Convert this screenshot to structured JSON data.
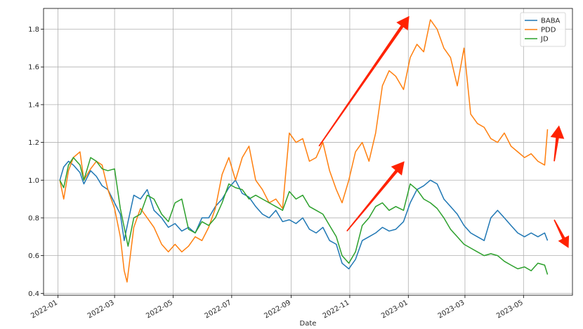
{
  "chart_data": {
    "type": "line",
    "title": "",
    "xlabel": "Date",
    "ylabel": "",
    "ylim": [
      0.39,
      1.91
    ],
    "xlim": [
      "2021-12-17",
      "2023-06-21"
    ],
    "grid": true,
    "legend_position": "top-right",
    "x_ticks": [
      "2022-01",
      "2022-03",
      "2022-05",
      "2022-07",
      "2022-09",
      "2022-11",
      "2023-01",
      "2023-03",
      "2023-05"
    ],
    "y_ticks": [
      0.4,
      0.6,
      0.8,
      1.0,
      1.2,
      1.4,
      1.6,
      1.8
    ],
    "series": [
      {
        "name": "BABA",
        "color": "#1f77b4",
        "points": [
          [
            "2022-01-03",
            1.0
          ],
          [
            "2022-01-07",
            1.07
          ],
          [
            "2022-01-12",
            1.1
          ],
          [
            "2022-01-17",
            1.08
          ],
          [
            "2022-01-24",
            1.04
          ],
          [
            "2022-01-28",
            0.98
          ],
          [
            "2022-02-04",
            1.05
          ],
          [
            "2022-02-10",
            1.02
          ],
          [
            "2022-02-16",
            0.97
          ],
          [
            "2022-02-22",
            0.95
          ],
          [
            "2022-03-01",
            0.88
          ],
          [
            "2022-03-07",
            0.82
          ],
          [
            "2022-03-11",
            0.68
          ],
          [
            "2022-03-15",
            0.78
          ],
          [
            "2022-03-21",
            0.92
          ],
          [
            "2022-03-28",
            0.9
          ],
          [
            "2022-04-04",
            0.95
          ],
          [
            "2022-04-11",
            0.84
          ],
          [
            "2022-04-19",
            0.8
          ],
          [
            "2022-04-26",
            0.75
          ],
          [
            "2022-05-03",
            0.77
          ],
          [
            "2022-05-10",
            0.73
          ],
          [
            "2022-05-17",
            0.75
          ],
          [
            "2022-05-24",
            0.72
          ],
          [
            "2022-05-31",
            0.8
          ],
          [
            "2022-06-07",
            0.8
          ],
          [
            "2022-06-14",
            0.86
          ],
          [
            "2022-06-21",
            0.9
          ],
          [
            "2022-06-28",
            0.96
          ],
          [
            "2022-07-05",
            1.0
          ],
          [
            "2022-07-12",
            0.93
          ],
          [
            "2022-07-19",
            0.91
          ],
          [
            "2022-07-26",
            0.86
          ],
          [
            "2022-08-02",
            0.82
          ],
          [
            "2022-08-09",
            0.8
          ],
          [
            "2022-08-16",
            0.84
          ],
          [
            "2022-08-23",
            0.78
          ],
          [
            "2022-08-30",
            0.79
          ],
          [
            "2022-09-06",
            0.77
          ],
          [
            "2022-09-13",
            0.8
          ],
          [
            "2022-09-20",
            0.74
          ],
          [
            "2022-09-27",
            0.72
          ],
          [
            "2022-10-04",
            0.75
          ],
          [
            "2022-10-11",
            0.68
          ],
          [
            "2022-10-18",
            0.66
          ],
          [
            "2022-10-24",
            0.56
          ],
          [
            "2022-10-31",
            0.53
          ],
          [
            "2022-11-07",
            0.58
          ],
          [
            "2022-11-14",
            0.68
          ],
          [
            "2022-11-21",
            0.7
          ],
          [
            "2022-11-28",
            0.72
          ],
          [
            "2022-12-05",
            0.75
          ],
          [
            "2022-12-12",
            0.73
          ],
          [
            "2022-12-19",
            0.74
          ],
          [
            "2022-12-27",
            0.78
          ],
          [
            "2023-01-03",
            0.88
          ],
          [
            "2023-01-10",
            0.95
          ],
          [
            "2023-01-17",
            0.97
          ],
          [
            "2023-01-24",
            1.0
          ],
          [
            "2023-01-31",
            0.98
          ],
          [
            "2023-02-07",
            0.9
          ],
          [
            "2023-02-14",
            0.86
          ],
          [
            "2023-02-21",
            0.82
          ],
          [
            "2023-02-28",
            0.76
          ],
          [
            "2023-03-07",
            0.72
          ],
          [
            "2023-03-14",
            0.7
          ],
          [
            "2023-03-21",
            0.68
          ],
          [
            "2023-03-28",
            0.8
          ],
          [
            "2023-04-04",
            0.84
          ],
          [
            "2023-04-11",
            0.8
          ],
          [
            "2023-04-18",
            0.76
          ],
          [
            "2023-04-25",
            0.72
          ],
          [
            "2023-05-02",
            0.7
          ],
          [
            "2023-05-09",
            0.72
          ],
          [
            "2023-05-16",
            0.7
          ],
          [
            "2023-05-23",
            0.72
          ],
          [
            "2023-05-26",
            0.68
          ]
        ]
      },
      {
        "name": "PDD",
        "color": "#ff7f0e",
        "points": [
          [
            "2022-01-03",
            1.0
          ],
          [
            "2022-01-07",
            0.9
          ],
          [
            "2022-01-12",
            1.05
          ],
          [
            "2022-01-17",
            1.12
          ],
          [
            "2022-01-24",
            1.15
          ],
          [
            "2022-01-28",
            1.0
          ],
          [
            "2022-02-04",
            1.06
          ],
          [
            "2022-02-10",
            1.1
          ],
          [
            "2022-02-16",
            1.08
          ],
          [
            "2022-02-22",
            0.95
          ],
          [
            "2022-03-01",
            0.85
          ],
          [
            "2022-03-07",
            0.7
          ],
          [
            "2022-03-11",
            0.52
          ],
          [
            "2022-03-14",
            0.46
          ],
          [
            "2022-03-21",
            0.75
          ],
          [
            "2022-03-28",
            0.85
          ],
          [
            "2022-04-04",
            0.8
          ],
          [
            "2022-04-11",
            0.75
          ],
          [
            "2022-04-19",
            0.66
          ],
          [
            "2022-04-26",
            0.62
          ],
          [
            "2022-05-03",
            0.66
          ],
          [
            "2022-05-10",
            0.62
          ],
          [
            "2022-05-17",
            0.65
          ],
          [
            "2022-05-24",
            0.7
          ],
          [
            "2022-05-31",
            0.68
          ],
          [
            "2022-06-07",
            0.75
          ],
          [
            "2022-06-14",
            0.85
          ],
          [
            "2022-06-21",
            1.03
          ],
          [
            "2022-06-28",
            1.12
          ],
          [
            "2022-07-05",
            1.0
          ],
          [
            "2022-07-12",
            1.12
          ],
          [
            "2022-07-19",
            1.18
          ],
          [
            "2022-07-26",
            1.0
          ],
          [
            "2022-08-02",
            0.95
          ],
          [
            "2022-08-09",
            0.88
          ],
          [
            "2022-08-16",
            0.9
          ],
          [
            "2022-08-23",
            0.85
          ],
          [
            "2022-08-30",
            1.25
          ],
          [
            "2022-09-06",
            1.2
          ],
          [
            "2022-09-13",
            1.22
          ],
          [
            "2022-09-20",
            1.1
          ],
          [
            "2022-09-27",
            1.12
          ],
          [
            "2022-10-04",
            1.2
          ],
          [
            "2022-10-11",
            1.05
          ],
          [
            "2022-10-18",
            0.95
          ],
          [
            "2022-10-24",
            0.88
          ],
          [
            "2022-10-31",
            1.0
          ],
          [
            "2022-11-07",
            1.15
          ],
          [
            "2022-11-14",
            1.2
          ],
          [
            "2022-11-21",
            1.1
          ],
          [
            "2022-11-28",
            1.25
          ],
          [
            "2022-12-05",
            1.5
          ],
          [
            "2022-12-12",
            1.58
          ],
          [
            "2022-12-19",
            1.55
          ],
          [
            "2022-12-27",
            1.48
          ],
          [
            "2023-01-03",
            1.65
          ],
          [
            "2023-01-10",
            1.72
          ],
          [
            "2023-01-17",
            1.68
          ],
          [
            "2023-01-24",
            1.85
          ],
          [
            "2023-01-31",
            1.8
          ],
          [
            "2023-02-07",
            1.7
          ],
          [
            "2023-02-14",
            1.65
          ],
          [
            "2023-02-21",
            1.5
          ],
          [
            "2023-02-28",
            1.7
          ],
          [
            "2023-03-07",
            1.35
          ],
          [
            "2023-03-14",
            1.3
          ],
          [
            "2023-03-21",
            1.28
          ],
          [
            "2023-03-28",
            1.22
          ],
          [
            "2023-04-04",
            1.2
          ],
          [
            "2023-04-11",
            1.25
          ],
          [
            "2023-04-18",
            1.18
          ],
          [
            "2023-04-25",
            1.15
          ],
          [
            "2023-05-02",
            1.12
          ],
          [
            "2023-05-09",
            1.14
          ],
          [
            "2023-05-16",
            1.1
          ],
          [
            "2023-05-23",
            1.08
          ],
          [
            "2023-05-26",
            1.27
          ]
        ]
      },
      {
        "name": "JD",
        "color": "#2ca02c",
        "points": [
          [
            "2022-01-03",
            1.0
          ],
          [
            "2022-01-07",
            0.96
          ],
          [
            "2022-01-12",
            1.08
          ],
          [
            "2022-01-17",
            1.12
          ],
          [
            "2022-01-24",
            1.08
          ],
          [
            "2022-01-28",
            1.0
          ],
          [
            "2022-02-04",
            1.12
          ],
          [
            "2022-02-10",
            1.1
          ],
          [
            "2022-02-16",
            1.06
          ],
          [
            "2022-02-22",
            1.05
          ],
          [
            "2022-03-01",
            1.06
          ],
          [
            "2022-03-07",
            0.85
          ],
          [
            "2022-03-11",
            0.75
          ],
          [
            "2022-03-15",
            0.65
          ],
          [
            "2022-03-21",
            0.8
          ],
          [
            "2022-03-28",
            0.82
          ],
          [
            "2022-04-04",
            0.92
          ],
          [
            "2022-04-11",
            0.9
          ],
          [
            "2022-04-19",
            0.82
          ],
          [
            "2022-04-26",
            0.78
          ],
          [
            "2022-05-03",
            0.88
          ],
          [
            "2022-05-10",
            0.9
          ],
          [
            "2022-05-17",
            0.74
          ],
          [
            "2022-05-24",
            0.72
          ],
          [
            "2022-05-31",
            0.78
          ],
          [
            "2022-06-07",
            0.76
          ],
          [
            "2022-06-14",
            0.8
          ],
          [
            "2022-06-21",
            0.88
          ],
          [
            "2022-06-28",
            0.98
          ],
          [
            "2022-07-05",
            0.96
          ],
          [
            "2022-07-12",
            0.95
          ],
          [
            "2022-07-19",
            0.9
          ],
          [
            "2022-07-26",
            0.92
          ],
          [
            "2022-08-02",
            0.9
          ],
          [
            "2022-08-09",
            0.88
          ],
          [
            "2022-08-16",
            0.86
          ],
          [
            "2022-08-23",
            0.84
          ],
          [
            "2022-08-30",
            0.94
          ],
          [
            "2022-09-06",
            0.9
          ],
          [
            "2022-09-13",
            0.92
          ],
          [
            "2022-09-20",
            0.86
          ],
          [
            "2022-09-27",
            0.84
          ],
          [
            "2022-10-04",
            0.82
          ],
          [
            "2022-10-11",
            0.76
          ],
          [
            "2022-10-18",
            0.7
          ],
          [
            "2022-10-24",
            0.6
          ],
          [
            "2022-10-31",
            0.56
          ],
          [
            "2022-11-07",
            0.62
          ],
          [
            "2022-11-14",
            0.76
          ],
          [
            "2022-11-21",
            0.8
          ],
          [
            "2022-11-28",
            0.86
          ],
          [
            "2022-12-05",
            0.88
          ],
          [
            "2022-12-12",
            0.84
          ],
          [
            "2022-12-19",
            0.86
          ],
          [
            "2022-12-27",
            0.84
          ],
          [
            "2023-01-03",
            0.98
          ],
          [
            "2023-01-10",
            0.95
          ],
          [
            "2023-01-17",
            0.9
          ],
          [
            "2023-01-24",
            0.88
          ],
          [
            "2023-01-31",
            0.85
          ],
          [
            "2023-02-07",
            0.8
          ],
          [
            "2023-02-14",
            0.74
          ],
          [
            "2023-02-21",
            0.7
          ],
          [
            "2023-02-28",
            0.66
          ],
          [
            "2023-03-07",
            0.64
          ],
          [
            "2023-03-14",
            0.62
          ],
          [
            "2023-03-21",
            0.6
          ],
          [
            "2023-03-28",
            0.61
          ],
          [
            "2023-04-04",
            0.6
          ],
          [
            "2023-04-11",
            0.57
          ],
          [
            "2023-04-18",
            0.55
          ],
          [
            "2023-04-25",
            0.53
          ],
          [
            "2023-05-02",
            0.54
          ],
          [
            "2023-05-09",
            0.52
          ],
          [
            "2023-05-16",
            0.56
          ],
          [
            "2023-05-23",
            0.55
          ],
          [
            "2023-05-26",
            0.5
          ]
        ]
      }
    ],
    "annotations": [
      {
        "type": "arrow",
        "color": "#ff2200",
        "from": [
          "2022-09-30",
          1.18
        ],
        "to": [
          "2023-01-02",
          1.87
        ]
      },
      {
        "type": "arrow",
        "color": "#ff2200",
        "from": [
          "2022-10-29",
          0.73
        ],
        "to": [
          "2022-12-28",
          1.1
        ]
      },
      {
        "type": "arrow",
        "color": "#ff2200",
        "from": [
          "2023-06-02",
          1.1
        ],
        "to": [
          "2023-06-07",
          1.29
        ]
      },
      {
        "type": "arrow",
        "color": "#ff2200",
        "from": [
          "2023-06-02",
          0.79
        ],
        "to": [
          "2023-06-17",
          0.64
        ]
      }
    ]
  }
}
